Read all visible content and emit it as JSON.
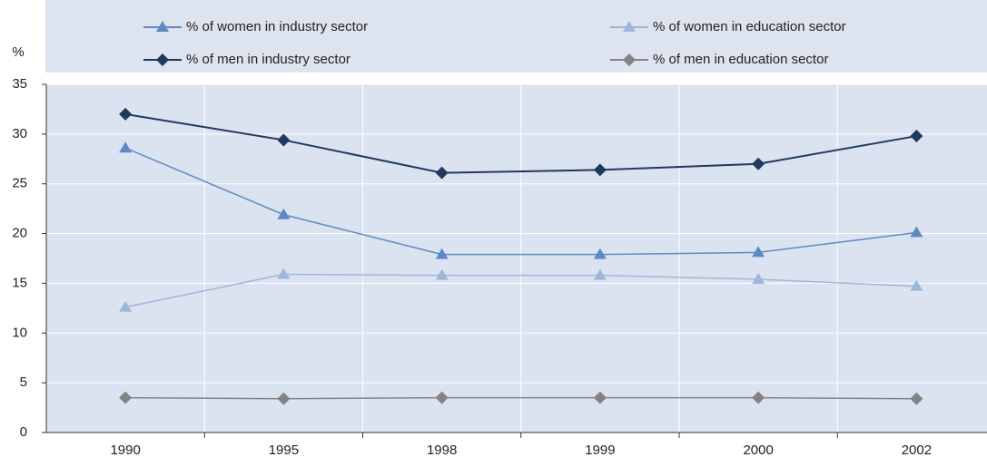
{
  "chart_data": {
    "type": "line",
    "y_label": "%",
    "categories": [
      "1990",
      "1995",
      "1998",
      "1999",
      "2000",
      "2002"
    ],
    "series": [
      {
        "name": "% of women in industry sector",
        "color": "#5b8ac6",
        "marker": "triangle",
        "values": [
          28.6,
          21.9,
          17.9,
          17.9,
          18.1,
          20.1
        ]
      },
      {
        "name": "% of women in education sector",
        "color": "#9db7db",
        "marker": "triangle",
        "values": [
          12.6,
          15.9,
          15.8,
          15.8,
          15.4,
          14.7
        ]
      },
      {
        "name": "% of men in industry sector",
        "color": "#1f3a5f",
        "marker": "diamond",
        "values": [
          32,
          29.4,
          26.1,
          26.4,
          27,
          29.8
        ]
      },
      {
        "name": "% of men in education sector",
        "color": "#838383",
        "marker": "diamond",
        "values": [
          3.5,
          3.4,
          3.5,
          3.5,
          3.5,
          3.4
        ]
      }
    ],
    "ylim": [
      0,
      35
    ],
    "yticks": [
      0,
      5,
      10,
      15,
      20,
      25,
      30,
      35
    ],
    "grid": true
  }
}
